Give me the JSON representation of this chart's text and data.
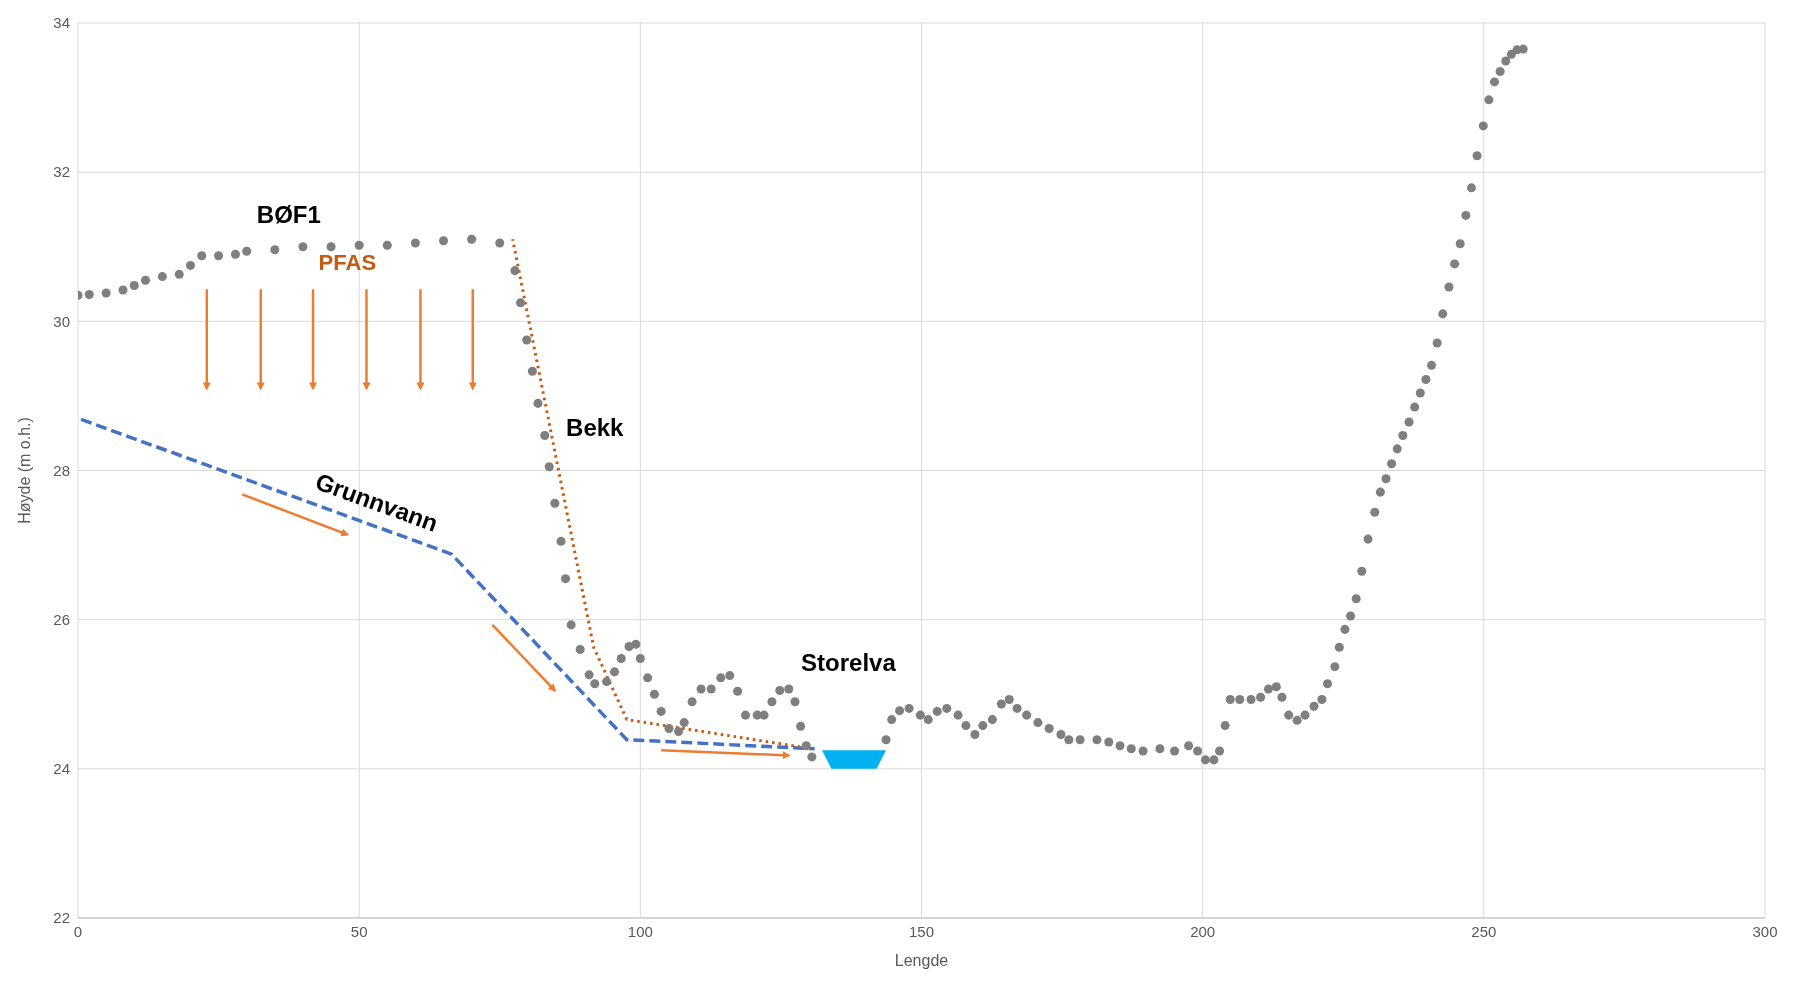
{
  "chart_data": {
    "type": "scatter",
    "xlabel": "Lengde",
    "ylabel": "Høyde (m o.h.)",
    "xlim": [
      0,
      300
    ],
    "xticks": [
      0,
      50,
      100,
      150,
      200,
      250,
      300
    ],
    "ylim": [
      22,
      34
    ],
    "yticks": [
      22,
      24,
      26,
      28,
      30,
      32,
      34
    ],
    "grid": true,
    "annotations": [
      "BØF1",
      "PFAS",
      "Bekk",
      "Grunnvann",
      "Storelva"
    ],
    "series": [
      {
        "type": "scatter",
        "color": "#7f7f7f",
        "marker": "circle",
        "x": [
          0,
          2,
          5,
          8,
          10,
          12,
          15,
          18,
          20,
          22,
          25,
          28,
          30,
          35,
          40,
          45,
          50,
          55,
          60,
          65,
          70,
          75,
          77.7,
          78.7,
          79.8,
          80.8,
          81.8,
          83,
          83.8,
          84.8,
          85.9,
          86.7,
          87.7,
          89.3,
          90.9,
          91.9,
          94,
          95.4,
          96.6,
          98,
          99.2,
          100,
          101.3,
          102.5,
          103.7,
          105.1,
          106.8,
          107.8,
          109.2,
          110.8,
          112.6,
          114.3,
          115.9,
          117.3,
          118.7,
          120.8,
          122,
          123.4,
          124.8,
          126.4,
          127.5,
          128.5,
          129.5,
          130.5,
          143.7,
          144.7,
          146.1,
          147.8,
          149.8,
          151.2,
          152.8,
          154.5,
          156.5,
          157.9,
          159.5,
          160.9,
          162.6,
          164.2,
          165.6,
          167,
          168.7,
          170.7,
          172.7,
          174.8,
          176.2,
          178.2,
          181.2,
          183.3,
          185.3,
          187.3,
          189.4,
          192.4,
          195,
          197.5,
          199.1,
          200.5,
          202,
          203,
          204,
          204.9,
          206.6,
          208.6,
          210.3,
          211.7,
          213.1,
          214.1,
          215.3,
          216.8,
          218.2,
          219.8,
          221.2,
          222.2,
          223.5,
          224.3,
          225.3,
          226.3,
          227.3,
          228.3,
          229.4,
          230.6,
          231.6,
          232.6,
          233.6,
          234.6,
          235.6,
          236.7,
          237.7,
          238.7,
          239.7,
          240.7,
          241.7,
          242.7,
          243.8,
          244.8,
          245.8,
          246.8,
          247.8,
          248.8,
          249.9,
          250.9,
          251.9,
          252.9,
          253.9,
          254.9,
          255.9,
          257
        ],
        "values": [
          30.35,
          30.36,
          30.38,
          30.42,
          30.48,
          30.55,
          30.6,
          30.63,
          30.75,
          30.88,
          30.88,
          30.9,
          30.94,
          30.96,
          31.0,
          31.0,
          31.02,
          31.02,
          31.05,
          31.08,
          31.1,
          31.05,
          30.68,
          30.25,
          29.75,
          29.33,
          28.9,
          28.47,
          28.05,
          27.56,
          27.05,
          26.55,
          25.93,
          25.6,
          25.26,
          25.14,
          25.17,
          25.3,
          25.48,
          25.64,
          25.67,
          25.48,
          25.22,
          25.0,
          24.77,
          24.54,
          24.5,
          24.62,
          24.9,
          25.07,
          25.07,
          25.22,
          25.25,
          25.04,
          24.72,
          24.72,
          24.72,
          24.9,
          25.05,
          25.07,
          24.9,
          24.57,
          24.31,
          24.16,
          24.39,
          24.66,
          24.78,
          24.81,
          24.72,
          24.66,
          24.77,
          24.81,
          24.72,
          24.58,
          24.46,
          24.58,
          24.66,
          24.87,
          24.93,
          24.81,
          24.72,
          24.62,
          24.54,
          24.46,
          24.39,
          24.39,
          24.39,
          24.36,
          24.31,
          24.27,
          24.24,
          24.27,
          24.24,
          24.31,
          24.24,
          24.12,
          24.12,
          24.24,
          24.58,
          24.93,
          24.93,
          24.93,
          24.96,
          25.07,
          25.1,
          24.96,
          24.72,
          24.65,
          24.72,
          24.84,
          24.93,
          25.14,
          25.37,
          25.63,
          25.87,
          26.05,
          26.28,
          26.65,
          27.08,
          27.44,
          27.71,
          27.89,
          28.09,
          28.29,
          28.47,
          28.65,
          28.85,
          29.04,
          29.22,
          29.41,
          29.71,
          30.1,
          30.46,
          30.77,
          31.04,
          31.42,
          31.79,
          32.22,
          32.62,
          32.97,
          33.21,
          33.35,
          33.49,
          33.58,
          33.64,
          33.65
        ]
      },
      {
        "type": "line",
        "color": "#4472c4",
        "marker": "none",
        "line_style": "dashed",
        "x": [
          0,
          66.4,
          97.6,
          131
        ],
        "values": [
          28.7,
          26.88,
          24.39,
          24.27
        ]
      },
      {
        "type": "line",
        "color": "#c55a11",
        "marker": "none",
        "line_style": "dotted",
        "x": [
          77.3,
          91.7,
          97.6,
          130.5
        ],
        "values": [
          31.1,
          25.63,
          24.66,
          24.27
        ]
      }
    ]
  }
}
